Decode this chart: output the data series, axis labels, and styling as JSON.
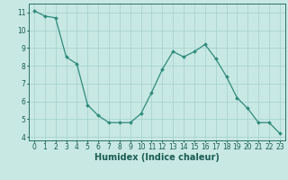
{
  "x": [
    0,
    1,
    2,
    3,
    4,
    5,
    6,
    7,
    8,
    9,
    10,
    11,
    12,
    13,
    14,
    15,
    16,
    17,
    18,
    19,
    20,
    21,
    22,
    23
  ],
  "y": [
    11.1,
    10.8,
    10.7,
    8.5,
    8.1,
    5.8,
    5.2,
    4.8,
    4.8,
    4.8,
    5.3,
    6.5,
    7.8,
    8.8,
    8.5,
    8.8,
    9.2,
    8.4,
    7.4,
    6.2,
    5.6,
    4.8,
    4.8,
    4.2
  ],
  "line_color": "#2e8b7a",
  "marker_color": "#2e8b7a",
  "bg_color": "#c8e8e4",
  "grid_color": "#a8d4cf",
  "axis_color": "#2e7065",
  "text_color": "#1a5c52",
  "xlabel": "Humidex (Indice chaleur)",
  "ylim": [
    3.8,
    11.5
  ],
  "xlim": [
    -0.5,
    23.5
  ],
  "yticks": [
    4,
    5,
    6,
    7,
    8,
    9,
    10,
    11
  ],
  "xticks": [
    0,
    1,
    2,
    3,
    4,
    5,
    6,
    7,
    8,
    9,
    10,
    11,
    12,
    13,
    14,
    15,
    16,
    17,
    18,
    19,
    20,
    21,
    22,
    23
  ],
  "tick_fontsize": 5.5,
  "label_fontsize": 7.0
}
